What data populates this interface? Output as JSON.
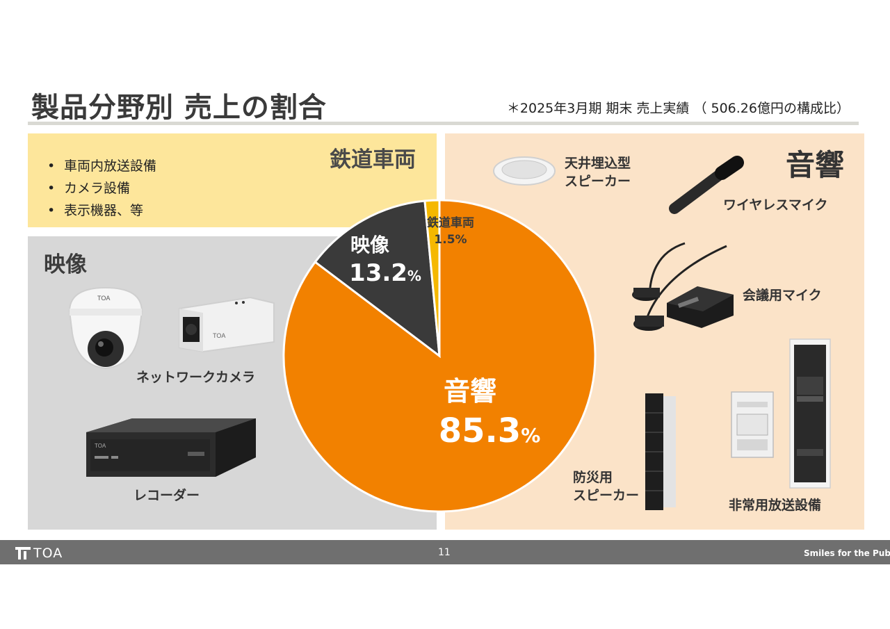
{
  "header": {
    "title": "製品分野別 売上の割合",
    "note": "＊2025年3月期 期末 売上実績 （ 506.26億円の構成比）"
  },
  "rail_panel": {
    "heading": "鉄道車両",
    "bullets": [
      "車両内放送設備",
      "カメラ設備",
      "表示機器、等"
    ]
  },
  "video_panel": {
    "heading": "映像",
    "products": {
      "network_camera": "ネットワークカメラ",
      "recorder": "レコーダー"
    }
  },
  "audio_panel": {
    "heading": "音響",
    "products": {
      "ceiling_speaker_line1": "天井埋込型",
      "ceiling_speaker_line2": "スピーカー",
      "wireless_mic": "ワイヤレスマイク",
      "conference_mic": "会議用マイク",
      "disaster_speaker_line1": "防災用",
      "disaster_speaker_line2": "スピーカー",
      "emergency_broadcast": "非常用放送設備"
    }
  },
  "chart_data": {
    "type": "pie",
    "slices": [
      {
        "label": "音響",
        "value": 85.3,
        "display": "85.3",
        "color": "#f28100"
      },
      {
        "label": "映像",
        "value": 13.2,
        "display": "13.2",
        "color": "#3a3a3a"
      },
      {
        "label": "鉄道車両",
        "value": 1.5,
        "display": "1.5%",
        "color": "#f5b800"
      }
    ],
    "percent_sign": "%"
  },
  "footer": {
    "logo_text": "TOA",
    "page_number": "11",
    "tagline": "Smiles for the Public"
  },
  "colors": {
    "rail_panel": "#fde69b",
    "video_panel": "#d7d7d7",
    "audio_panel": "#fbe3c8",
    "footer": "#6f6f6f"
  }
}
